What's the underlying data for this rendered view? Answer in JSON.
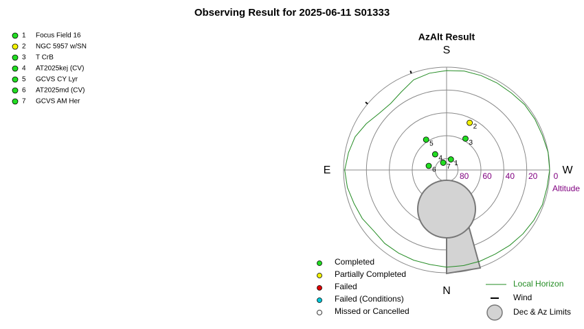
{
  "title": "Observing Result for 2025-06-11 S01333",
  "targets": [
    {
      "number": "1",
      "name": "Focus Field 16",
      "color": "#22dd22"
    },
    {
      "number": "2",
      "name": "NGC 5957 w/SN",
      "color": "#f2f200"
    },
    {
      "number": "3",
      "name": "T CrB",
      "color": "#22dd22"
    },
    {
      "number": "4",
      "name": "AT2025kej (CV)",
      "color": "#22dd22"
    },
    {
      "number": "5",
      "name": "GCVS CY Lyr",
      "color": "#22dd22"
    },
    {
      "number": "6",
      "name": "AT2025md (CV)",
      "color": "#22dd22"
    },
    {
      "number": "7",
      "name": "GCVS AM Her",
      "color": "#22dd22"
    }
  ],
  "chart_data": {
    "type": "polar",
    "title": "AzAlt Result",
    "directions": {
      "south": "S",
      "west": "W",
      "north": "N",
      "east": "E"
    },
    "radial_label": "Altitude",
    "rlim": [
      90,
      0
    ],
    "rticks": [
      80,
      60,
      40,
      20,
      0
    ],
    "points": [
      {
        "label": "1",
        "az": 202,
        "alt": 80,
        "color": "#22dd22"
      },
      {
        "label": "2",
        "az": 206,
        "alt": 44,
        "color": "#f2f200"
      },
      {
        "label": "3",
        "az": 211,
        "alt": 58,
        "color": "#22dd22"
      },
      {
        "label": "4",
        "az": 144,
        "alt": 73,
        "color": "#22dd22"
      },
      {
        "label": "5",
        "az": 146,
        "alt": 58,
        "color": "#22dd22"
      },
      {
        "label": "6",
        "az": 103,
        "alt": 74,
        "color": "#22dd22"
      },
      {
        "label": "7",
        "az": 155,
        "alt": 83,
        "color": "#22dd22"
      }
    ],
    "horizon": {
      "name": "Local Horizon",
      "color": "#228b22",
      "az": [
        0,
        10,
        20,
        30,
        40,
        50,
        60,
        70,
        80,
        90,
        100,
        110,
        120,
        130,
        140,
        150,
        160,
        170,
        180,
        190,
        200,
        210,
        220,
        230,
        240,
        250,
        260,
        270,
        280,
        290,
        300,
        310,
        320,
        330,
        340,
        350,
        360
      ],
      "alt": [
        5,
        6,
        6,
        6,
        6,
        7,
        5,
        4,
        2,
        1,
        3,
        5,
        9,
        13,
        14,
        11,
        6,
        4,
        3,
        2,
        2,
        2,
        2,
        1,
        1,
        1,
        0,
        0,
        1,
        1,
        2,
        3,
        4,
        5,
        5,
        5,
        5
      ]
    },
    "wind": {
      "name": "Wind",
      "az": [
        130,
        160
      ]
    },
    "limits_name": "Dec & Az Limits",
    "legend": [
      {
        "label": "Completed",
        "color": "#22dd22"
      },
      {
        "label": "Partially Completed",
        "color": "#f2f200"
      },
      {
        "label": "Failed",
        "color": "#e00000"
      },
      {
        "label": "Failed (Conditions)",
        "color": "#00c8d8"
      },
      {
        "label": "Missed or Cancelled",
        "color": "#ffffff"
      }
    ]
  }
}
